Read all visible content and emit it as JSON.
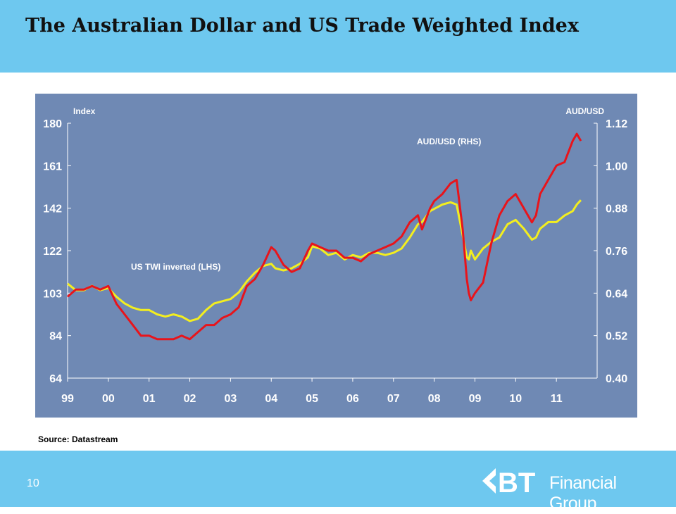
{
  "slide": {
    "title": "The Australian Dollar and US Trade Weighted Index",
    "source": "Source: Datastream",
    "page_number": "10"
  },
  "logo": {
    "mark": "BT",
    "text": "Financial Group"
  },
  "colors": {
    "header": "#6ec8ef",
    "plot_bg": "#6f89b4",
    "aud": "#e8141b",
    "twi": "#f3ee1f"
  },
  "chart_data": {
    "type": "line",
    "xlabel_ticks": [
      "99",
      "00",
      "01",
      "02",
      "03",
      "04",
      "05",
      "06",
      "07",
      "08",
      "09",
      "10",
      "11"
    ],
    "left_axis": {
      "label": "Index",
      "ticks": [
        "180",
        "161",
        "142",
        "122",
        "103",
        "84",
        "64"
      ],
      "ylim": [
        64,
        180
      ]
    },
    "right_axis": {
      "label": "AUD/USD",
      "ticks": [
        "1.12",
        "1.00",
        "0.88",
        "0.76",
        "0.64",
        "0.52",
        "0.40"
      ],
      "ylim": [
        0.4,
        1.12
      ]
    },
    "grid": false,
    "annotations": [
      "AUD/USD (RHS)",
      "US TWI inverted (LHS)"
    ],
    "series": [
      {
        "name": "AUD/USD (RHS)",
        "axis": "right",
        "x": [
          1999.0,
          1999.2,
          1999.4,
          1999.6,
          1999.8,
          2000.0,
          2000.2,
          2000.4,
          2000.6,
          2000.8,
          2001.0,
          2001.2,
          2001.4,
          2001.6,
          2001.8,
          2002.0,
          2002.2,
          2002.4,
          2002.6,
          2002.8,
          2003.0,
          2003.2,
          2003.4,
          2003.6,
          2003.8,
          2004.0,
          2004.1,
          2004.3,
          2004.5,
          2004.7,
          2004.9,
          2005.0,
          2005.2,
          2005.4,
          2005.6,
          2005.8,
          2006.0,
          2006.2,
          2006.4,
          2006.6,
          2006.8,
          2007.0,
          2007.2,
          2007.4,
          2007.6,
          2007.7,
          2007.9,
          2008.0,
          2008.2,
          2008.4,
          2008.55,
          2008.7,
          2008.8,
          2008.85,
          2008.9,
          2009.0,
          2009.2,
          2009.4,
          2009.6,
          2009.8,
          2010.0,
          2010.2,
          2010.4,
          2010.5,
          2010.6,
          2010.8,
          2011.0,
          2011.2,
          2011.4,
          2011.5,
          2011.6
        ],
        "values": [
          0.63,
          0.65,
          0.65,
          0.66,
          0.65,
          0.66,
          0.61,
          0.58,
          0.55,
          0.52,
          0.52,
          0.51,
          0.51,
          0.51,
          0.52,
          0.51,
          0.53,
          0.55,
          0.55,
          0.57,
          0.58,
          0.6,
          0.66,
          0.68,
          0.72,
          0.77,
          0.76,
          0.72,
          0.7,
          0.71,
          0.76,
          0.78,
          0.77,
          0.76,
          0.76,
          0.74,
          0.74,
          0.73,
          0.75,
          0.76,
          0.77,
          0.78,
          0.8,
          0.84,
          0.86,
          0.82,
          0.88,
          0.9,
          0.92,
          0.95,
          0.96,
          0.82,
          0.68,
          0.64,
          0.62,
          0.64,
          0.67,
          0.78,
          0.86,
          0.9,
          0.92,
          0.88,
          0.84,
          0.86,
          0.92,
          0.96,
          1.0,
          1.01,
          1.07,
          1.09,
          1.07
        ]
      },
      {
        "name": "US TWI inverted (LHS)",
        "axis": "left",
        "x": [
          1999.0,
          1999.2,
          1999.4,
          1999.6,
          1999.8,
          2000.0,
          2000.2,
          2000.4,
          2000.6,
          2000.8,
          2001.0,
          2001.2,
          2001.4,
          2001.6,
          2001.8,
          2002.0,
          2002.2,
          2002.4,
          2002.6,
          2002.8,
          2003.0,
          2003.2,
          2003.4,
          2003.6,
          2003.8,
          2004.0,
          2004.1,
          2004.3,
          2004.5,
          2004.7,
          2004.9,
          2005.0,
          2005.2,
          2005.4,
          2005.6,
          2005.8,
          2006.0,
          2006.2,
          2006.4,
          2006.6,
          2006.8,
          2007.0,
          2007.2,
          2007.4,
          2007.6,
          2007.7,
          2007.9,
          2008.0,
          2008.2,
          2008.4,
          2008.55,
          2008.7,
          2008.8,
          2008.85,
          2008.9,
          2009.0,
          2009.2,
          2009.4,
          2009.6,
          2009.8,
          2010.0,
          2010.2,
          2010.4,
          2010.5,
          2010.6,
          2010.8,
          2011.0,
          2011.2,
          2011.4,
          2011.5,
          2011.6
        ],
        "values": [
          107,
          104,
          104,
          106,
          104,
          105,
          101,
          98,
          96,
          95,
          95,
          93,
          92,
          93,
          92,
          90,
          91,
          95,
          98,
          99,
          100,
          103,
          108,
          112,
          115,
          116,
          114,
          113,
          114,
          116,
          119,
          124,
          123,
          120,
          121,
          118,
          120,
          119,
          121,
          121,
          120,
          121,
          123,
          128,
          134,
          135,
          140,
          141,
          143,
          144,
          143,
          129,
          119,
          118,
          122,
          118,
          123,
          126,
          128,
          134,
          136,
          132,
          127,
          128,
          132,
          135,
          135,
          138,
          140,
          143,
          145
        ]
      }
    ]
  }
}
